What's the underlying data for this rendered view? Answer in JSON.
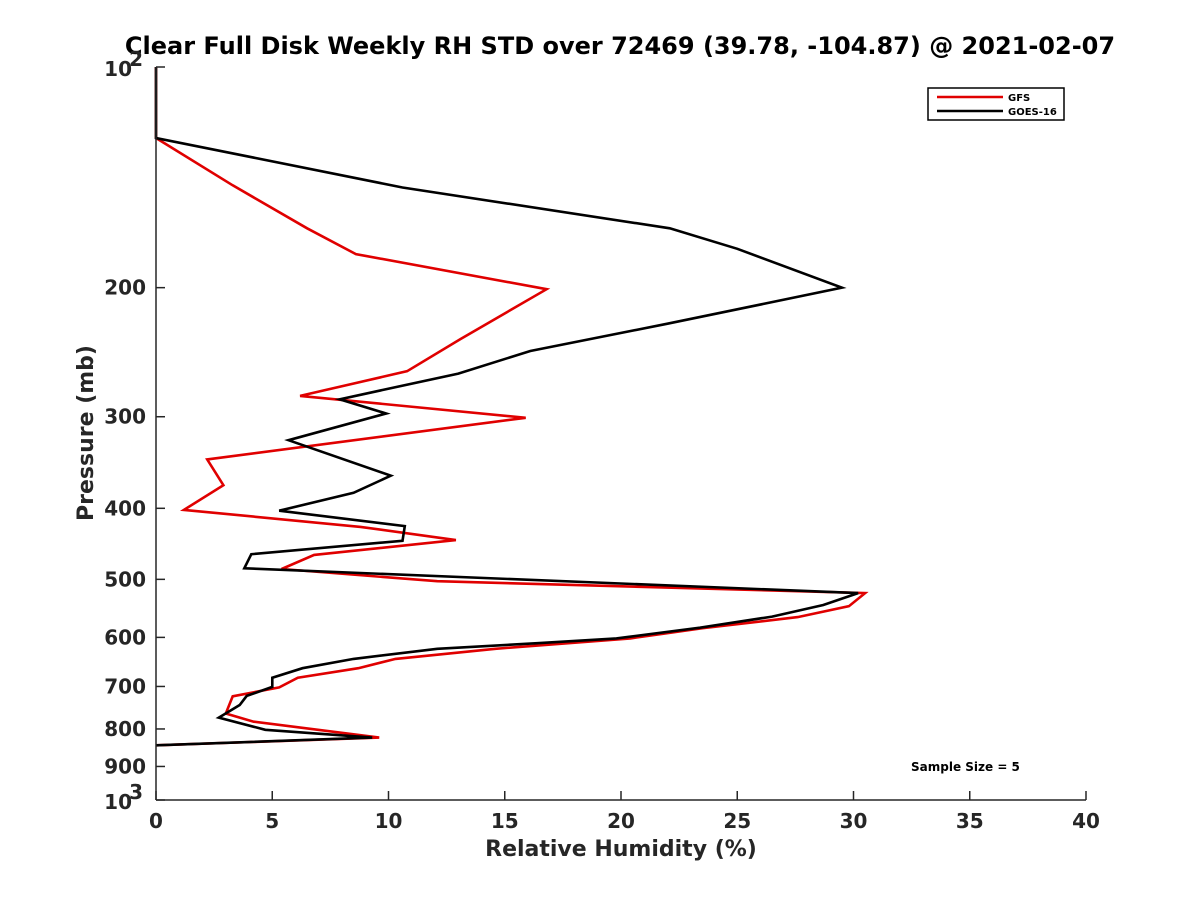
{
  "chart_data": {
    "type": "line",
    "title": "Clear Full Disk Weekly RH STD over 72469 (39.78, -104.87) @ 2021-02-07",
    "xlabel": "Relative Humidity (%)",
    "ylabel": "Pressure (mb)",
    "xlim": [
      0,
      40
    ],
    "ylim": [
      100,
      1000
    ],
    "yscale": "log",
    "y_reversed": true,
    "x_ticks": [
      "0",
      "5",
      "10",
      "15",
      "20",
      "25",
      "30",
      "35",
      "40"
    ],
    "y_ticks": [
      {
        "value": 100,
        "base": "10",
        "exp": "2"
      },
      {
        "value": 200,
        "label": "200"
      },
      {
        "value": 300,
        "label": "300"
      },
      {
        "value": 400,
        "label": "400"
      },
      {
        "value": 500,
        "label": "500"
      },
      {
        "value": 600,
        "label": "600"
      },
      {
        "value": 700,
        "label": "700"
      },
      {
        "value": 800,
        "label": "800"
      },
      {
        "value": 900,
        "label": "900"
      },
      {
        "value": 1000,
        "base": "10",
        "exp": "3"
      }
    ],
    "grid": false,
    "legend_position": "top-right",
    "annotation": "Sample Size = 5",
    "series": [
      {
        "name": "GFS",
        "color": "#e00000",
        "points": [
          [
            0,
            100
          ],
          [
            0,
            125
          ],
          [
            3.3,
            145
          ],
          [
            6.5,
            166
          ],
          [
            8.6,
            180
          ],
          [
            16.8,
            201
          ],
          [
            13.1,
            235
          ],
          [
            10.8,
            260
          ],
          [
            6.2,
            281
          ],
          [
            15.9,
            301
          ],
          [
            2.2,
            343
          ],
          [
            2.9,
            372
          ],
          [
            1.2,
            402
          ],
          [
            8.8,
            424
          ],
          [
            12.9,
            442
          ],
          [
            6.8,
            463
          ],
          [
            5.4,
            484
          ],
          [
            12.1,
            503
          ],
          [
            30.5,
            522
          ],
          [
            29.8,
            544
          ],
          [
            27.6,
            563
          ],
          [
            23.5,
            583
          ],
          [
            20.4,
            602
          ],
          [
            14.6,
            622
          ],
          [
            10.3,
            642
          ],
          [
            8.7,
            661
          ],
          [
            6.1,
            681
          ],
          [
            5.3,
            702
          ],
          [
            3.3,
            722
          ],
          [
            3.0,
            762
          ],
          [
            4.2,
            782
          ],
          [
            9.6,
            822
          ],
          [
            0,
            842
          ]
        ]
      },
      {
        "name": "GOES-16",
        "color": "#000000",
        "points": [
          [
            0,
            100
          ],
          [
            0,
            125
          ],
          [
            10.6,
            146
          ],
          [
            22.1,
            166
          ],
          [
            25.0,
            177
          ],
          [
            29.5,
            200
          ],
          [
            22.0,
            224
          ],
          [
            16.1,
            244
          ],
          [
            13.0,
            262
          ],
          [
            7.9,
            284
          ],
          [
            9.9,
            297
          ],
          [
            5.7,
            323
          ],
          [
            10.1,
            361
          ],
          [
            8.5,
            381
          ],
          [
            5.3,
            403
          ],
          [
            10.7,
            423
          ],
          [
            10.6,
            443
          ],
          [
            4.1,
            462
          ],
          [
            3.8,
            483
          ],
          [
            30.2,
            522
          ],
          [
            28.7,
            542
          ],
          [
            26.5,
            562
          ],
          [
            23.4,
            582
          ],
          [
            19.8,
            602
          ],
          [
            16.4,
            611
          ],
          [
            12.1,
            622
          ],
          [
            8.5,
            642
          ],
          [
            6.3,
            661
          ],
          [
            5.0,
            681
          ],
          [
            5.0,
            701
          ],
          [
            3.9,
            721
          ],
          [
            3.6,
            742
          ],
          [
            2.7,
            772
          ],
          [
            4.7,
            802
          ],
          [
            9.3,
            822
          ],
          [
            0,
            842
          ]
        ]
      }
    ]
  }
}
